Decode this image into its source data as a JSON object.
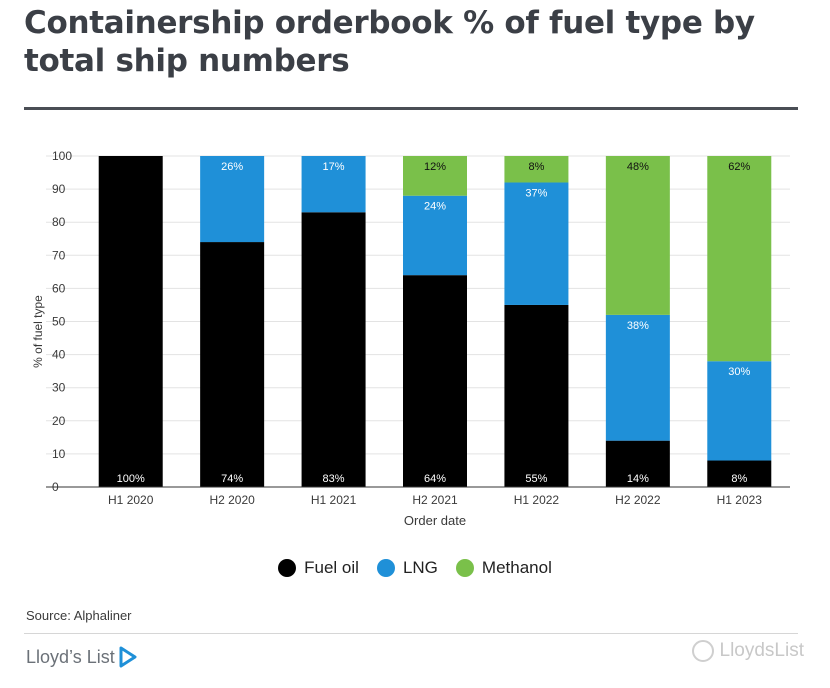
{
  "title": "Containership orderbook % of fuel type by total ship numbers",
  "colors": {
    "fuel_oil": "#000000",
    "lng": "#1f90d8",
    "methanol": "#7ac04a",
    "grid": "#e3e3e3",
    "text": "#3a3a3a"
  },
  "chart_data": {
    "type": "bar",
    "stacked": true,
    "categories": [
      "H1 2020",
      "H2 2020",
      "H1 2021",
      "H2 2021",
      "H1 2022",
      "H2 2022",
      "H1 2023"
    ],
    "series": [
      {
        "name": "Fuel oil",
        "color": "#000000",
        "values": [
          100,
          74,
          83,
          64,
          55,
          14,
          8
        ]
      },
      {
        "name": "LNG",
        "color": "#1f90d8",
        "values": [
          0,
          26,
          17,
          24,
          37,
          38,
          30
        ]
      },
      {
        "name": "Methanol",
        "color": "#7ac04a",
        "values": [
          0,
          0,
          0,
          12,
          8,
          48,
          62
        ]
      }
    ],
    "xlabel": "Order date",
    "ylabel": "% of fuel type",
    "ylim": [
      0,
      100
    ],
    "yticks": [
      0,
      10,
      20,
      30,
      40,
      50,
      60,
      70,
      80,
      90,
      100
    ],
    "grid": true,
    "legend_position": "bottom"
  },
  "source": "Source: Alphaliner",
  "brand": "Lloyd’s List",
  "watermark": "LloydsList"
}
